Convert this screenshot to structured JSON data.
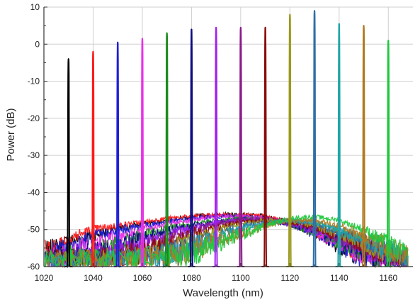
{
  "chart_data": {
    "type": "line",
    "title": "",
    "xlabel": "Wavelength (nm)",
    "ylabel": "Power (dB)",
    "xlim": [
      1020,
      1170
    ],
    "ylim": [
      -60,
      10
    ],
    "xticks": [
      1020,
      1040,
      1060,
      1080,
      1100,
      1120,
      1140,
      1160
    ],
    "yticks": [
      10,
      0,
      -10,
      -20,
      -30,
      -40,
      -50,
      -60
    ],
    "grid": true,
    "legend": "none",
    "series": [
      {
        "center": 1030,
        "peak": -4,
        "color": "#000000"
      },
      {
        "center": 1040,
        "peak": -2,
        "color": "#ff1a1a"
      },
      {
        "center": 1050,
        "peak": 0.5,
        "color": "#1f1fd6"
      },
      {
        "center": 1060,
        "peak": 1.5,
        "color": "#e632e6"
      },
      {
        "center": 1070,
        "peak": 3,
        "color": "#1a8a1a"
      },
      {
        "center": 1080,
        "peak": 4,
        "color": "#0c0c80"
      },
      {
        "center": 1090,
        "peak": 4.5,
        "color": "#a020f0"
      },
      {
        "center": 1100,
        "peak": 4.5,
        "color": "#8a1a8a"
      },
      {
        "center": 1110,
        "peak": 4.5,
        "color": "#8b0a0a"
      },
      {
        "center": 1120,
        "peak": 8,
        "color": "#9a9a1a"
      },
      {
        "center": 1130,
        "peak": 9,
        "color": "#2e6ea6"
      },
      {
        "center": 1140,
        "peak": 5.5,
        "color": "#1fa6a6"
      },
      {
        "center": 1150,
        "peak": 5,
        "color": "#b07a1e"
      },
      {
        "center": 1160,
        "peak": 1,
        "color": "#1ec83c"
      }
    ],
    "baseline": {
      "x": [
        1020,
        1030,
        1040,
        1050,
        1060,
        1070,
        1080,
        1090,
        1100,
        1110,
        1120,
        1130,
        1140,
        1150,
        1160,
        1168
      ],
      "envelopes": [
        {
          "series": 0,
          "y": [
            -57,
            -53.5,
            -51.5,
            -50,
            -48.5,
            -47.5,
            -46.5,
            -46,
            -46,
            -46.5,
            -48,
            -51,
            -54,
            -57,
            -60,
            -60
          ]
        },
        {
          "series": 1,
          "y": [
            -56,
            -52.5,
            -50,
            -49,
            -48,
            -47,
            -46.5,
            -46,
            -46,
            -46.5,
            -48,
            -50.5,
            -53.5,
            -56.5,
            -59.5,
            -60
          ]
        },
        {
          "series": 2,
          "y": [
            -58,
            -55,
            -52,
            -50.5,
            -49,
            -48,
            -47,
            -46.5,
            -46.5,
            -47,
            -48.5,
            -51,
            -54,
            -57,
            -60,
            -60
          ]
        },
        {
          "series": 3,
          "y": [
            -59,
            -57,
            -54,
            -52,
            -50,
            -48.5,
            -47.5,
            -46.5,
            -46.5,
            -47,
            -48.5,
            -50.5,
            -53.5,
            -56.5,
            -59.5,
            -60
          ]
        },
        {
          "series": 4,
          "y": [
            -60,
            -58.5,
            -56.5,
            -54,
            -52,
            -50,
            -48.5,
            -47.5,
            -47,
            -47.5,
            -48.5,
            -50.5,
            -53,
            -56,
            -59,
            -60
          ]
        },
        {
          "series": 5,
          "y": [
            -60,
            -59,
            -57,
            -55,
            -52.5,
            -50.5,
            -49,
            -48,
            -47.5,
            -47.5,
            -48.5,
            -50,
            -52.5,
            -55.5,
            -58.5,
            -60
          ]
        },
        {
          "series": 6,
          "y": [
            -60,
            -59.5,
            -58,
            -56,
            -54,
            -51.5,
            -49.5,
            -48,
            -47.5,
            -47.5,
            -48.5,
            -50,
            -52.5,
            -55,
            -58,
            -60
          ]
        },
        {
          "series": 7,
          "y": [
            -60,
            -60,
            -59,
            -57.5,
            -55.5,
            -53,
            -50.5,
            -48.5,
            -47.5,
            -47,
            -48,
            -49.5,
            -52,
            -54.5,
            -57.5,
            -60
          ]
        },
        {
          "series": 8,
          "y": [
            -60,
            -60,
            -59.5,
            -58.5,
            -56.5,
            -54,
            -51.5,
            -49.5,
            -48,
            -47.5,
            -48,
            -49.5,
            -51.5,
            -54,
            -57,
            -60
          ]
        },
        {
          "series": 9,
          "y": [
            -60,
            -60,
            -60,
            -59,
            -57.5,
            -55.5,
            -53,
            -50.5,
            -48.5,
            -47.5,
            -47.5,
            -49,
            -51,
            -53.5,
            -56.5,
            -59.5
          ]
        },
        {
          "series": 10,
          "y": [
            -60,
            -60,
            -60,
            -59.5,
            -58.5,
            -57,
            -54.5,
            -51.5,
            -49.5,
            -48,
            -47.5,
            -48.5,
            -50.5,
            -53,
            -56,
            -59
          ]
        },
        {
          "series": 11,
          "y": [
            -60,
            -60,
            -60,
            -60,
            -59,
            -57.5,
            -55,
            -52.5,
            -50,
            -48.5,
            -47.5,
            -48,
            -50,
            -52.5,
            -55.5,
            -58.5
          ]
        },
        {
          "series": 12,
          "y": [
            -60,
            -60,
            -60,
            -60,
            -59.5,
            -58,
            -56,
            -53.5,
            -51,
            -49,
            -47.5,
            -47.5,
            -49,
            -51.5,
            -55,
            -58
          ]
        },
        {
          "series": 13,
          "y": [
            -60,
            -60,
            -60,
            -60,
            -60,
            -58.5,
            -56.5,
            -54,
            -51.5,
            -49,
            -47,
            -46.5,
            -47.5,
            -50,
            -54,
            -57.5
          ]
        }
      ]
    }
  }
}
